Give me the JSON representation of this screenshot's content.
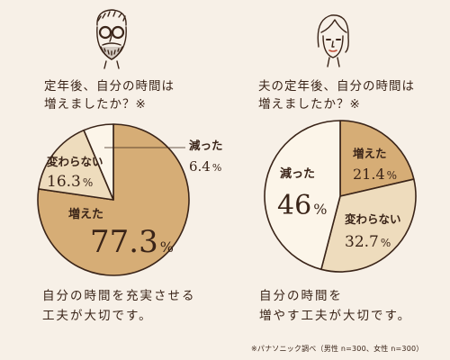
{
  "colors": {
    "background": "#f7f0e7",
    "ink": "#3a2418",
    "increased": "#d6ad76",
    "unchanged": "#eedcbd",
    "decreased": "#fcf5e9"
  },
  "illustrations": {
    "left": "bearded-man-with-glasses-icon",
    "right": "woman-face-icon"
  },
  "panels": [
    {
      "title_lines": [
        "定年後、自分の時間は",
        "増えましたか？※"
      ],
      "caption_lines": [
        "自分の時間を充実させる",
        "工夫が大切です。"
      ]
    },
    {
      "title_lines": [
        "夫の定年後、自分の時間は",
        "増えましたか？※"
      ],
      "caption_lines": [
        "自分の時間を",
        "増やす工夫が大切です。"
      ]
    }
  ],
  "footnote": "※パナソニック調べ（男性 n=300、女性 n=300）",
  "chart_data": [
    {
      "type": "pie",
      "title": "定年後、自分の時間は増えましたか？※",
      "unit": "%",
      "slices": [
        {
          "label": "増えた",
          "value": 77.3,
          "display": "77.3",
          "color": "#d6ad76"
        },
        {
          "label": "変わらない",
          "value": 16.3,
          "display": "16.3",
          "color": "#eedcbd"
        },
        {
          "label": "減った",
          "value": 6.4,
          "display": "6.4",
          "color": "#fcf5e9"
        }
      ]
    },
    {
      "type": "pie",
      "title": "夫の定年後、自分の時間は増えましたか？※",
      "unit": "%",
      "slices": [
        {
          "label": "増えた",
          "value": 21.4,
          "display": "21.4",
          "color": "#d6ad76"
        },
        {
          "label": "変わらない",
          "value": 32.7,
          "display": "32.7",
          "color": "#eedcbd"
        },
        {
          "label": "減った",
          "value": 46,
          "display": "46",
          "color": "#fcf5e9"
        }
      ]
    }
  ]
}
